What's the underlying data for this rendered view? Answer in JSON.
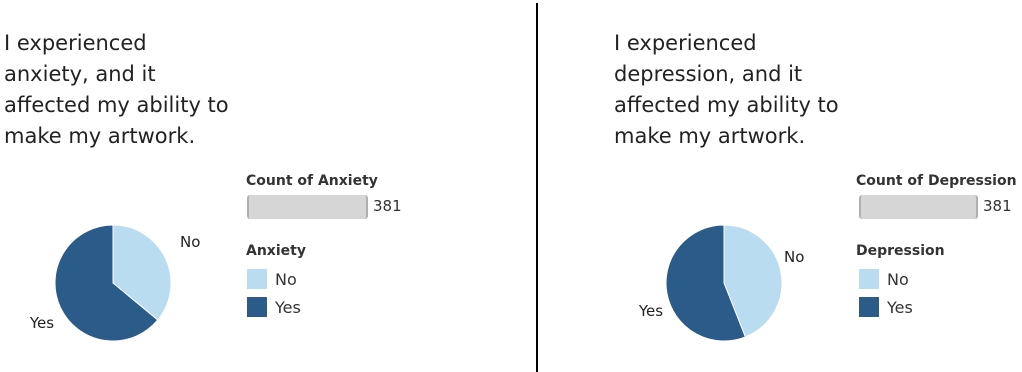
{
  "chart_data": [
    {
      "type": "pie",
      "title": "I experienced anxiety, and it affected my ability to make my artwork.",
      "title_lines": [
        "I experienced",
        "anxiety, and it",
        "affected my ability to",
        "make my artwork."
      ],
      "categories": [
        "No",
        "Yes"
      ],
      "values": [
        36,
        64
      ],
      "colors": [
        "#b9dcf0",
        "#2b5b88"
      ],
      "count_label": "Count of Anxiety",
      "count_value": "381",
      "legend_title": "Anxiety",
      "legend": [
        "No",
        "Yes"
      ]
    },
    {
      "type": "pie",
      "title": "I experienced depression, and it affected my ability to make my artwork.",
      "title_lines": [
        "I experienced",
        "depression, and it",
        "affected my ability to",
        "make my artwork."
      ],
      "categories": [
        "No",
        "Yes"
      ],
      "values": [
        44,
        56
      ],
      "colors": [
        "#b9dcf0",
        "#2b5b88"
      ],
      "count_label": "Count of Depression",
      "count_value": "381",
      "legend_title": "Depression",
      "legend": [
        "No",
        "Yes"
      ]
    }
  ]
}
